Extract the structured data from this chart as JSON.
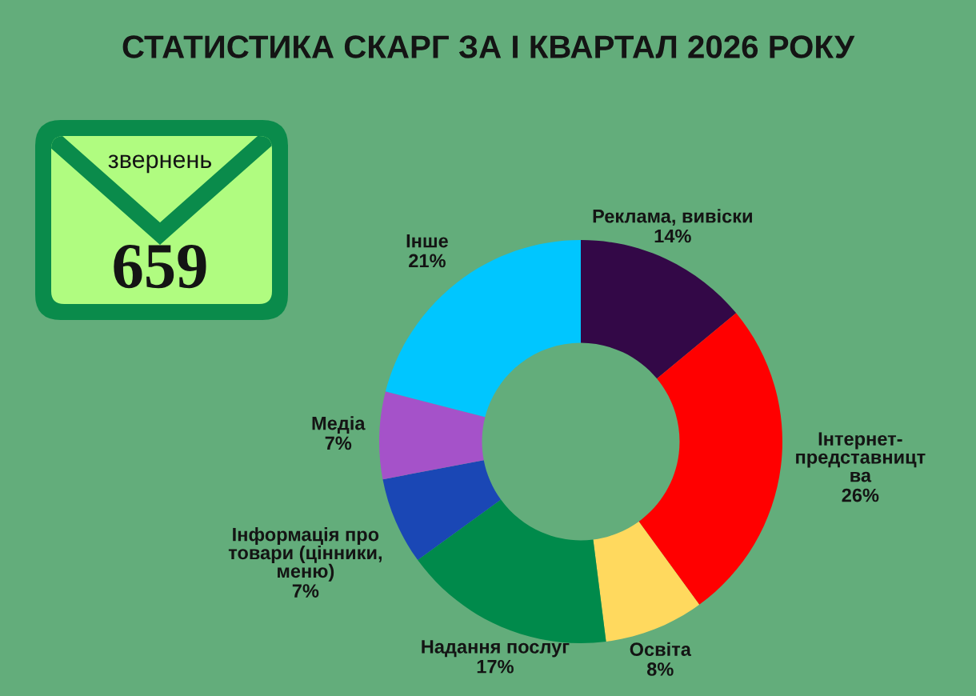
{
  "chart_data": {
    "type": "donut",
    "title": "СТАТИСТИКА СКАРГ ЗА І КВАРТАЛ 2026 РОКУ",
    "categories": [
      "Реклама, вивіски",
      "Інтернет-\nпредставницт\nва",
      "Освіта",
      "Надання послуг",
      "Інформація про\nтовари (цінники,\nменю)",
      "Медіа",
      "Інше"
    ],
    "values": [
      14,
      26,
      8,
      17,
      7,
      7,
      21
    ],
    "colors": [
      "#330847",
      "#ff0000",
      "#ffd95e",
      "#008a4b",
      "#1a47b5",
      "#a552c9",
      "#00c6ff"
    ],
    "value_labels": [
      "14%",
      "26%",
      "8%",
      "17%",
      "7%",
      "7%",
      "21%"
    ],
    "annotations": [
      "звернень",
      "659"
    ]
  }
}
